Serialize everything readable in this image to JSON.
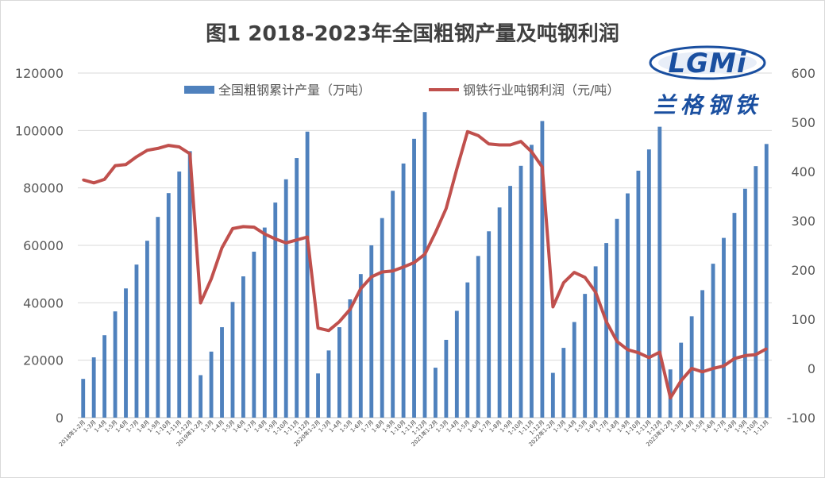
{
  "title": "图1 2018-2023年全国粗钢产量及吨钢利润",
  "logo": {
    "wordmark": "LGMi",
    "chinese": "兰格钢铁"
  },
  "chart_data": {
    "type": "bar",
    "title": "图1 2018-2023年全国粗钢产量及吨钢利润",
    "categories": [
      "2018年1-2月",
      "1-3月",
      "1-4月",
      "1-5月",
      "1-6月",
      "1-7月",
      "1-8月",
      "1-9月",
      "1-10月",
      "1-11月",
      "1-12月",
      "2019年1-2月",
      "1-3月",
      "1-4月",
      "1-5月",
      "1-6月",
      "1-7月",
      "1-8月",
      "1-9月",
      "1-10月",
      "1-11月",
      "1-12月",
      "2020年1-2月",
      "1-3月",
      "1-4月",
      "1-5月",
      "1-6月",
      "1-7月",
      "1-8月",
      "1-9月",
      "1-10月",
      "1-11月",
      "1-12月",
      "2021年1-2月",
      "1-3月",
      "1-4月",
      "1-5月",
      "1-6月",
      "1-7月",
      "1-8月",
      "1-9月",
      "1-10月",
      "1-11月",
      "1-12月",
      "2022年1-2月",
      "1-3月",
      "1-4月",
      "1-5月",
      "1-6月",
      "1-7月",
      "1-8月",
      "1-9月",
      "1-10月",
      "1-11月",
      "1-12月",
      "2023年1-2月",
      "1-3月",
      "1-4月",
      "1-5月",
      "1-6月",
      "1-7月",
      "1-8月",
      "1-9月",
      "1-10月",
      "1-11月"
    ],
    "series": [
      {
        "name": "全国粗钢累计产量（万吨）",
        "type": "bar",
        "axis": "left",
        "color": "#4f81bd",
        "values": [
          13500,
          21000,
          28700,
          37000,
          45000,
          53300,
          61600,
          69900,
          78200,
          85700,
          92800,
          14800,
          23000,
          31500,
          40300,
          49200,
          57800,
          66200,
          74900,
          83000,
          90400,
          99600,
          15400,
          23400,
          31500,
          41200,
          50000,
          60000,
          69500,
          79000,
          88500,
          97100,
          106400,
          17400,
          27100,
          37200,
          47100,
          56300,
          64900,
          73200,
          80700,
          87700,
          95000,
          103300,
          15600,
          24300,
          33300,
          43100,
          52700,
          60800,
          69200,
          78100,
          86000,
          93400,
          101300,
          16800,
          26100,
          35300,
          44400,
          53600,
          62600,
          71300,
          79700,
          87600,
          95300
        ]
      },
      {
        "name": "钢铁行业吨钢利润（元/吨）",
        "type": "line",
        "axis": "right",
        "color": "#c0504d",
        "values": [
          383,
          377,
          384,
          412,
          414,
          430,
          443,
          447,
          453,
          450,
          436,
          133,
          182,
          245,
          284,
          288,
          287,
          273,
          263,
          255,
          261,
          267,
          82,
          77,
          95,
          120,
          162,
          186,
          196,
          198,
          206,
          215,
          232,
          276,
          325,
          405,
          481,
          473,
          456,
          454,
          454,
          461,
          440,
          409,
          125,
          174,
          195,
          185,
          155,
          95,
          55,
          38,
          32,
          22,
          33,
          -60,
          -25,
          0,
          -7,
          0,
          5,
          20,
          26,
          28,
          40
        ]
      }
    ],
    "y_left": {
      "min": 0,
      "max": 120000,
      "ticks": [
        0,
        20000,
        40000,
        60000,
        80000,
        100000,
        120000
      ]
    },
    "y_right": {
      "min": -100,
      "max": 600,
      "ticks": [
        -100,
        0,
        100,
        200,
        300,
        400,
        500,
        600
      ]
    },
    "grid": true,
    "legend": "top"
  }
}
